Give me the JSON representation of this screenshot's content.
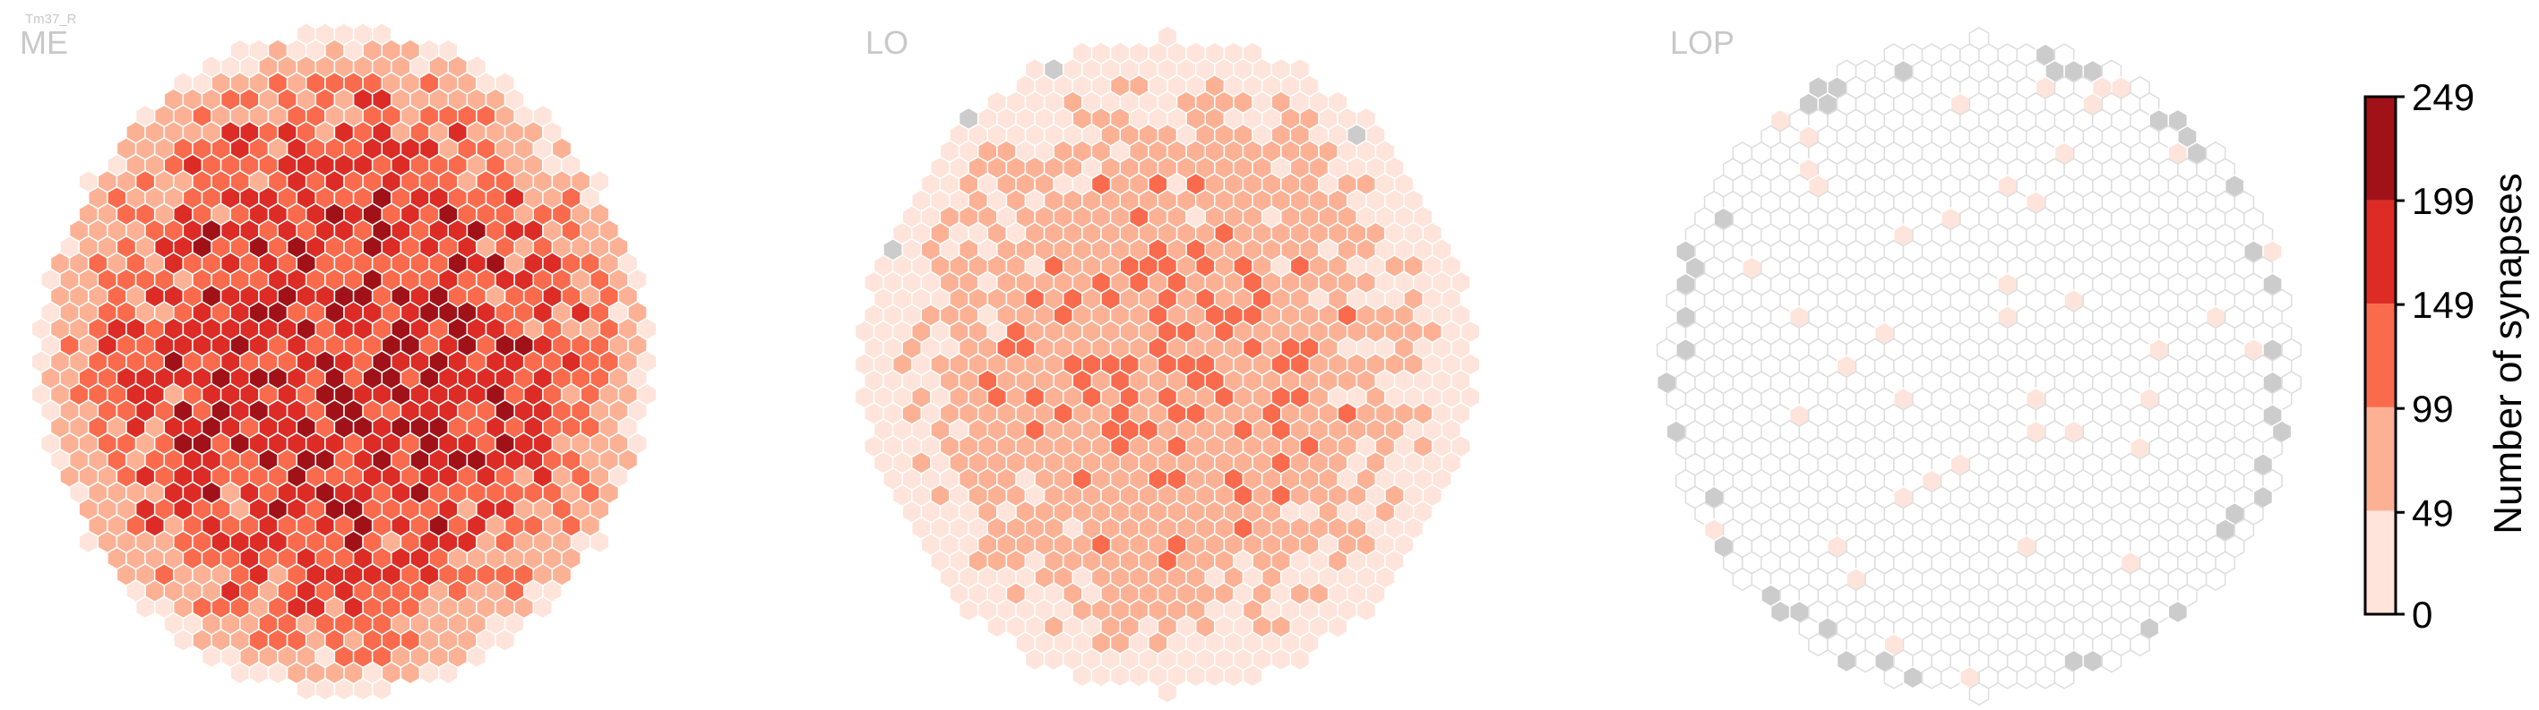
{
  "chart_data": {
    "type": "heatmap",
    "cell_type": "Tm37_R",
    "panels": [
      {
        "label": "ME",
        "regions": [
          {
            "r": 0.0,
            "value": 185
          },
          {
            "r": 0.55,
            "value": 160
          },
          {
            "r": 0.8,
            "value": 110
          },
          {
            "r": 0.95,
            "value": 60
          },
          {
            "r": 1.0,
            "value": 25
          }
        ],
        "empty_ring_fraction": 0.0
      },
      {
        "label": "LO",
        "regions": [
          {
            "r": 0.0,
            "value": 95
          },
          {
            "r": 0.6,
            "value": 75
          },
          {
            "r": 0.85,
            "value": 45
          },
          {
            "r": 1.0,
            "value": 20
          }
        ],
        "empty_ring_fraction": 0.04
      },
      {
        "label": "LOP",
        "regions": [
          {
            "r": 0.0,
            "value": 0
          },
          {
            "r": 1.0,
            "value": 0
          }
        ],
        "sparse_low_value": 15,
        "sparse_fraction": 0.03,
        "empty_ring_fraction": 0.3
      }
    ],
    "colorbar": {
      "label": "Number of synapses",
      "ticks": [
        0,
        49,
        99,
        149,
        199,
        249
      ],
      "colors": [
        "#fee4da",
        "#fcb195",
        "#f96b4c",
        "#dc2c25",
        "#a11218"
      ],
      "range": [
        0,
        249
      ]
    },
    "empty_color": "#cccccc",
    "zero_color": "#ffffff"
  }
}
